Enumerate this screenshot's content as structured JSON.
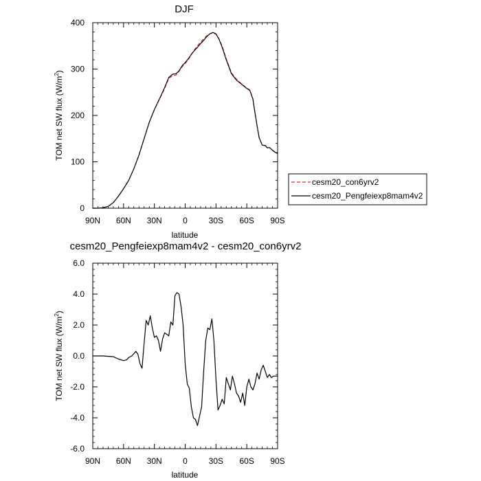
{
  "chart_data": [
    {
      "type": "line",
      "title": "DJF",
      "xlabel": "latitude",
      "ylabel_main": "TOM net SW flux (W/m",
      "ylabel_sup": "2",
      "ylabel_end": ")",
      "xlim": [
        -90,
        90
      ],
      "ylim": [
        0,
        400
      ],
      "xticks": [
        -90,
        -60,
        -30,
        0,
        30,
        60,
        90
      ],
      "xtick_labels": [
        "90N",
        "60N",
        "30N",
        "0",
        "30S",
        "60S",
        "90S"
      ],
      "yticks": [
        0,
        100,
        200,
        300,
        400
      ],
      "ytick_labels": [
        "0",
        "100",
        "200",
        "300",
        "400"
      ],
      "grid": false,
      "legend_position": "right",
      "series": [
        {
          "name": "cesm20_con6yrv2",
          "color": "#e8232a",
          "dash": "dashed",
          "x": [
            -90,
            -85,
            -80,
            -75,
            -70,
            -65,
            -60,
            -55,
            -50,
            -45,
            -40,
            -35,
            -30,
            -25,
            -20,
            -16,
            -12,
            -9,
            -6,
            -3,
            0,
            3,
            6,
            9,
            12,
            15,
            18,
            21,
            24,
            27,
            30,
            33,
            36,
            40,
            45,
            50,
            55,
            60,
            63,
            66,
            68,
            70,
            72,
            75,
            78,
            80,
            82,
            85,
            88,
            90
          ],
          "y": [
            0,
            0,
            1,
            4,
            12,
            26,
            42,
            60,
            85,
            115,
            150,
            185,
            212,
            235,
            258,
            280,
            286,
            287,
            295,
            305,
            312,
            320,
            331,
            342,
            350,
            358,
            365,
            372,
            376,
            378,
            375,
            365,
            350,
            322,
            292,
            278,
            268,
            259,
            255,
            236,
            205,
            178,
            152,
            136,
            135,
            130,
            131,
            125,
            120,
            118
          ]
        },
        {
          "name": "cesm20_Pengfeiexp8mam4v2",
          "color": "#000000",
          "dash": "solid",
          "x": [
            -90,
            -85,
            -80,
            -75,
            -70,
            -65,
            -60,
            -55,
            -50,
            -45,
            -40,
            -35,
            -30,
            -25,
            -20,
            -16,
            -12,
            -9,
            -6,
            -3,
            0,
            3,
            6,
            9,
            12,
            15,
            18,
            21,
            24,
            27,
            30,
            33,
            36,
            40,
            45,
            50,
            55,
            60,
            63,
            66,
            68,
            70,
            72,
            75,
            78,
            80,
            82,
            85,
            88,
            90
          ],
          "y": [
            0,
            0,
            1,
            4,
            12,
            26,
            42,
            60,
            85,
            115,
            150,
            185,
            213,
            236,
            260,
            282,
            289,
            290,
            296,
            307,
            314,
            322,
            332,
            340,
            347,
            355,
            362,
            370,
            376,
            379,
            376,
            364,
            347,
            320,
            290,
            276,
            267,
            258,
            254,
            235,
            205,
            178,
            152,
            136,
            135,
            130,
            131,
            125,
            120,
            118
          ]
        }
      ]
    },
    {
      "type": "line",
      "title": "cesm20_Pengfeiexp8mam4v2 - cesm20_con6yrv2",
      "xlabel": "latitude",
      "ylabel_main": "TOM net SW flux (W/m",
      "ylabel_sup": "2",
      "ylabel_end": ")",
      "xlim": [
        -90,
        90
      ],
      "ylim": [
        -6,
        6
      ],
      "xticks": [
        -90,
        -60,
        -30,
        0,
        30,
        60,
        90
      ],
      "xtick_labels": [
        "90N",
        "60N",
        "30N",
        "0",
        "30S",
        "60S",
        "90S"
      ],
      "yticks": [
        -6,
        -4,
        -2,
        0,
        2,
        4,
        6
      ],
      "ytick_labels": [
        "-6.0",
        "-4.0",
        "-2.0",
        "0.0",
        "2.0",
        "4.0",
        "6.0"
      ],
      "grid": false,
      "series": [
        {
          "name": "",
          "color": "#000000",
          "dash": "solid",
          "x": [
            -90,
            -80,
            -70,
            -65,
            -60,
            -57,
            -55,
            -52,
            -50,
            -48,
            -46,
            -44,
            -42,
            -40,
            -38,
            -36,
            -34,
            -32,
            -30,
            -28,
            -26,
            -24,
            -22,
            -20,
            -18,
            -16,
            -14,
            -12,
            -10,
            -8,
            -6,
            -4,
            -2,
            0,
            2,
            4,
            6,
            8,
            10,
            12,
            14,
            16,
            18,
            20,
            22,
            24,
            26,
            28,
            30,
            32,
            34,
            36,
            38,
            40,
            42,
            44,
            46,
            48,
            50,
            52,
            54,
            56,
            58,
            60,
            62,
            64,
            66,
            68,
            70,
            72,
            74,
            76,
            78,
            80,
            82,
            84,
            86,
            88,
            90
          ],
          "y": [
            0,
            0,
            -0.05,
            -0.2,
            -0.3,
            -0.25,
            -0.1,
            0,
            0.15,
            0.3,
            0.1,
            -0.5,
            -0.8,
            0.8,
            2.3,
            2.0,
            2.6,
            1.8,
            1.2,
            1.3,
            1.0,
            0.3,
            1.1,
            1.5,
            1.4,
            1.3,
            2.2,
            2.0,
            3.9,
            4.1,
            4.0,
            3.2,
            2.0,
            -0.5,
            -1.8,
            -2.1,
            -3.3,
            -4.0,
            -4.1,
            -4.5,
            -3.9,
            -3.3,
            -1.0,
            1.0,
            1.8,
            1.7,
            2.4,
            1.0,
            -1.5,
            -3.5,
            -3.2,
            -2.8,
            -3.1,
            -1.4,
            -1.8,
            -2.2,
            -1.3,
            -1.8,
            -2.4,
            -2.6,
            -3.0,
            -2.4,
            -3.2,
            -2.0,
            -1.5,
            -2.0,
            -2.2,
            -1.8,
            -1.1,
            -1.5,
            -0.9,
            -0.6,
            -1.0,
            -1.4,
            -1.2,
            -1.4,
            -1.3,
            -1.3,
            -1.3
          ]
        }
      ]
    }
  ]
}
